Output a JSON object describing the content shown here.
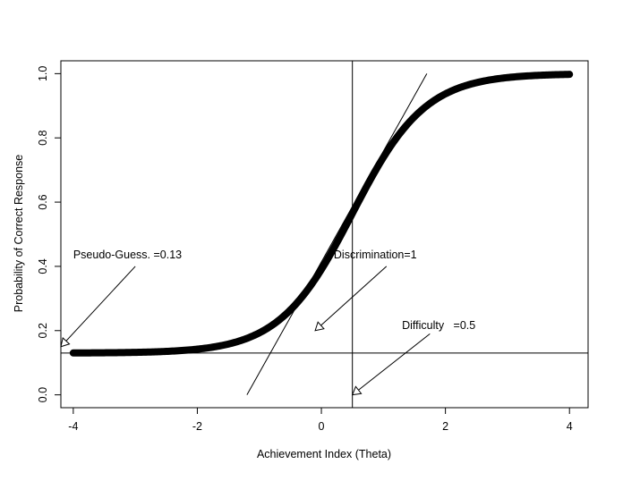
{
  "chart_data": {
    "type": "line",
    "title": "",
    "xlabel": "Achievement Index (Theta)",
    "ylabel": "Probability of Correct Response",
    "xlim": [
      -4.2,
      4.3
    ],
    "ylim": [
      -0.04,
      1.04
    ],
    "x_ticks": [
      -4,
      -2,
      0,
      2,
      4
    ],
    "y_ticks": [
      0.0,
      0.2,
      0.4,
      0.6,
      0.8,
      1.0
    ],
    "x_tick_labels": [
      "-4",
      "-2",
      "0",
      "2",
      "4"
    ],
    "y_tick_labels": [
      "0.0",
      "0.2",
      "0.4",
      "0.6",
      "0.8",
      "1.0"
    ],
    "grid": false,
    "curve": {
      "model": "3PL item characteristic curve",
      "x_from": -4,
      "x_to": 4,
      "guessing": 0.13,
      "discrimination": 1,
      "difficulty": 0.5,
      "scale": 1.7
    },
    "reference_lines": {
      "horizontal_y": 0.13,
      "vertical_x": 0.5,
      "tangent": {
        "x1": -1.2,
        "y1": 0.0,
        "x2": 1.7,
        "y2": 1.0
      }
    },
    "annotations": [
      {
        "text": "Pseudo-Guess. =0.13",
        "text_x": -4.0,
        "text_y": 0.425,
        "arrow_from": [
          -3.0,
          0.4
        ],
        "arrow_to": [
          -4.2,
          0.15
        ]
      },
      {
        "text": "Discrimination=1",
        "text_x": 0.2,
        "text_y": 0.425,
        "arrow_from": [
          1.05,
          0.4
        ],
        "arrow_to": [
          -0.1,
          0.2
        ]
      },
      {
        "text": "Difficulty   =0.5",
        "text_x": 1.3,
        "text_y": 0.205,
        "arrow_from": [
          1.75,
          0.19
        ],
        "arrow_to": [
          0.5,
          0.0
        ]
      }
    ]
  }
}
